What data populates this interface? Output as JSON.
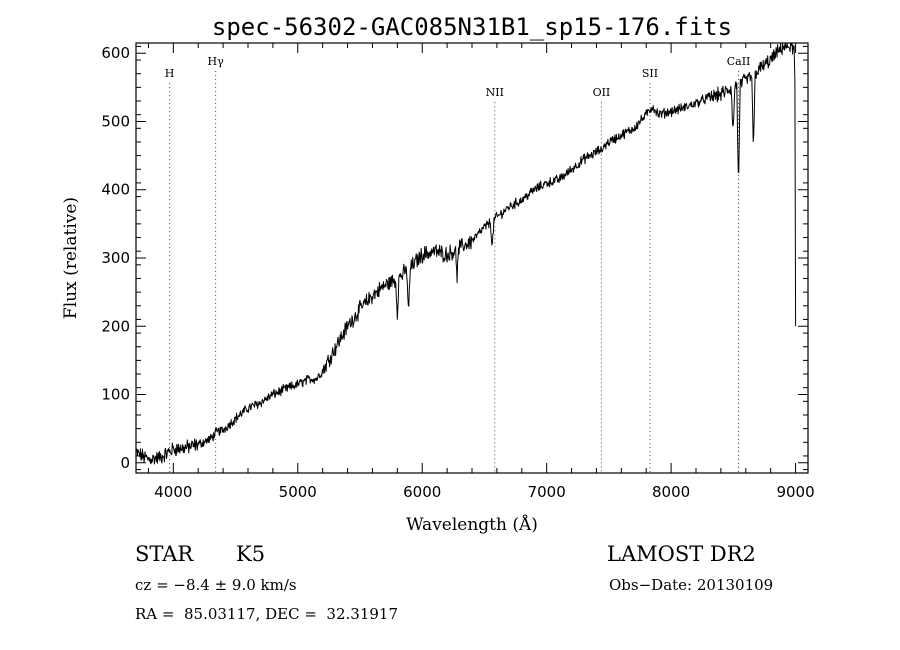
{
  "chart_data": {
    "type": "line",
    "title": "spec-56302-GAC085N31B1_sp15-176.fits",
    "xlabel": "Wavelength (Å)",
    "ylabel": "Flux (relative)",
    "xlim": [
      3700,
      9100
    ],
    "ylim": [
      -15,
      615
    ],
    "x_ticks": [
      4000,
      5000,
      6000,
      7000,
      8000,
      9000
    ],
    "y_ticks": [
      0,
      100,
      200,
      300,
      400,
      500,
      600
    ],
    "x_tick_labels": [
      "4000",
      "5000",
      "6000",
      "7000",
      "8000",
      "9000"
    ],
    "y_tick_labels": [
      "0",
      "100",
      "200",
      "300",
      "400",
      "500",
      "600"
    ],
    "series": [
      {
        "name": "spectrum",
        "x": [
          3700,
          3800,
          3900,
          4000,
          4100,
          4200,
          4300,
          4350,
          4400,
          4500,
          4600,
          4700,
          4800,
          4900,
          5000,
          5100,
          5150,
          5200,
          5300,
          5400,
          5500,
          5600,
          5700,
          5800,
          5900,
          6000,
          6100,
          6200,
          6300,
          6400,
          6500,
          6600,
          6700,
          6800,
          6900,
          7000,
          7100,
          7200,
          7300,
          7400,
          7500,
          7600,
          7700,
          7800,
          7850,
          7900,
          8000,
          8100,
          8200,
          8300,
          8400,
          8500,
          8600,
          8700,
          8800,
          8900,
          8950,
          9000
        ],
        "y": [
          15,
          5,
          8,
          20,
          22,
          27,
          35,
          45,
          48,
          65,
          80,
          88,
          100,
          108,
          115,
          123,
          123,
          135,
          168,
          200,
          225,
          245,
          260,
          270,
          285,
          305,
          310,
          305,
          315,
          325,
          345,
          360,
          375,
          385,
          400,
          410,
          415,
          430,
          445,
          455,
          470,
          480,
          490,
          510,
          522,
          510,
          515,
          520,
          527,
          535,
          540,
          550,
          560,
          575,
          590,
          610,
          610,
          605
        ]
      }
    ],
    "dips": [
      {
        "x": 5800,
        "y": 220
      },
      {
        "x": 5890,
        "y": 218
      },
      {
        "x": 6280,
        "y": 275
      },
      {
        "x": 6563,
        "y": 315
      },
      {
        "x": 7440,
        "y": 455
      },
      {
        "x": 8498,
        "y": 480
      },
      {
        "x": 8542,
        "y": 400
      },
      {
        "x": 8662,
        "y": 455
      }
    ],
    "lines": [
      {
        "label": "H",
        "x": 3970,
        "text_y": 565
      },
      {
        "label": "Hγ",
        "x": 4340,
        "text_y": 583
      },
      {
        "label": "NII",
        "x": 6583,
        "text_y": 537
      },
      {
        "label": "OII",
        "x": 7440,
        "text_y": 537
      },
      {
        "label": "SII",
        "x": 7830,
        "text_y": 565
      },
      {
        "label": "CaII",
        "x": 8542,
        "text_y": 583
      }
    ]
  },
  "info": {
    "object_class": "STAR",
    "subclass": "K5",
    "survey": "LAMOST DR2",
    "cz": "cz = −8.4 ± 9.0 km/s",
    "obs_date": "Obs−Date: 20130109",
    "coords": "RA =  85.03117, DEC =  32.31917"
  }
}
